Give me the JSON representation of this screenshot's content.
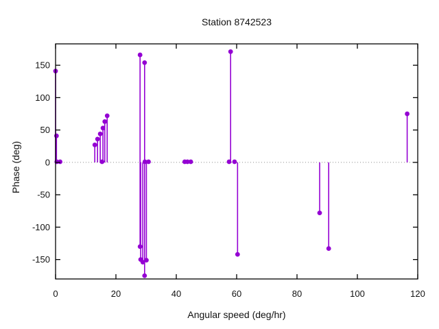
{
  "title": "Station 8742523",
  "colors": {
    "accent": "#9400d3",
    "axis": "#000000",
    "zero_line": "#8a8a8a",
    "background": "#ffffff"
  },
  "chart_data": {
    "type": "scatter",
    "style": "impulses-with-points",
    "title": "Station 8742523",
    "xlabel": "Angular speed (deg/hr)",
    "ylabel": "Phase (deg)",
    "xlim": [
      0,
      120
    ],
    "ylim": [
      -180,
      183
    ],
    "xticks": [
      0,
      20,
      40,
      60,
      80,
      100,
      120
    ],
    "yticks": [
      -150,
      -100,
      -50,
      0,
      50,
      100,
      150
    ],
    "grid": false,
    "zero_line_dotted": true,
    "legend": "none",
    "series_color": "#9400d3",
    "points": [
      [
        0.0,
        141
      ],
      [
        0.3,
        41
      ],
      [
        0.4,
        1
      ],
      [
        1.5,
        1
      ],
      [
        13.0,
        27
      ],
      [
        13.9,
        36
      ],
      [
        14.8,
        44
      ],
      [
        15.7,
        53
      ],
      [
        16.3,
        63
      ],
      [
        17.1,
        72
      ],
      [
        15.4,
        1
      ],
      [
        28.0,
        166
      ],
      [
        29.5,
        154
      ],
      [
        29.6,
        1
      ],
      [
        30.8,
        1
      ],
      [
        28.0,
        -130
      ],
      [
        28.2,
        -150
      ],
      [
        28.9,
        -154
      ],
      [
        30.1,
        -151
      ],
      [
        29.5,
        -175
      ],
      [
        42.8,
        1
      ],
      [
        43.7,
        1
      ],
      [
        44.8,
        1
      ],
      [
        57.5,
        1
      ],
      [
        58.0,
        171
      ],
      [
        59.3,
        1
      ],
      [
        60.3,
        -142
      ],
      [
        87.5,
        -78
      ],
      [
        90.5,
        -133
      ],
      [
        116.5,
        75
      ]
    ]
  }
}
